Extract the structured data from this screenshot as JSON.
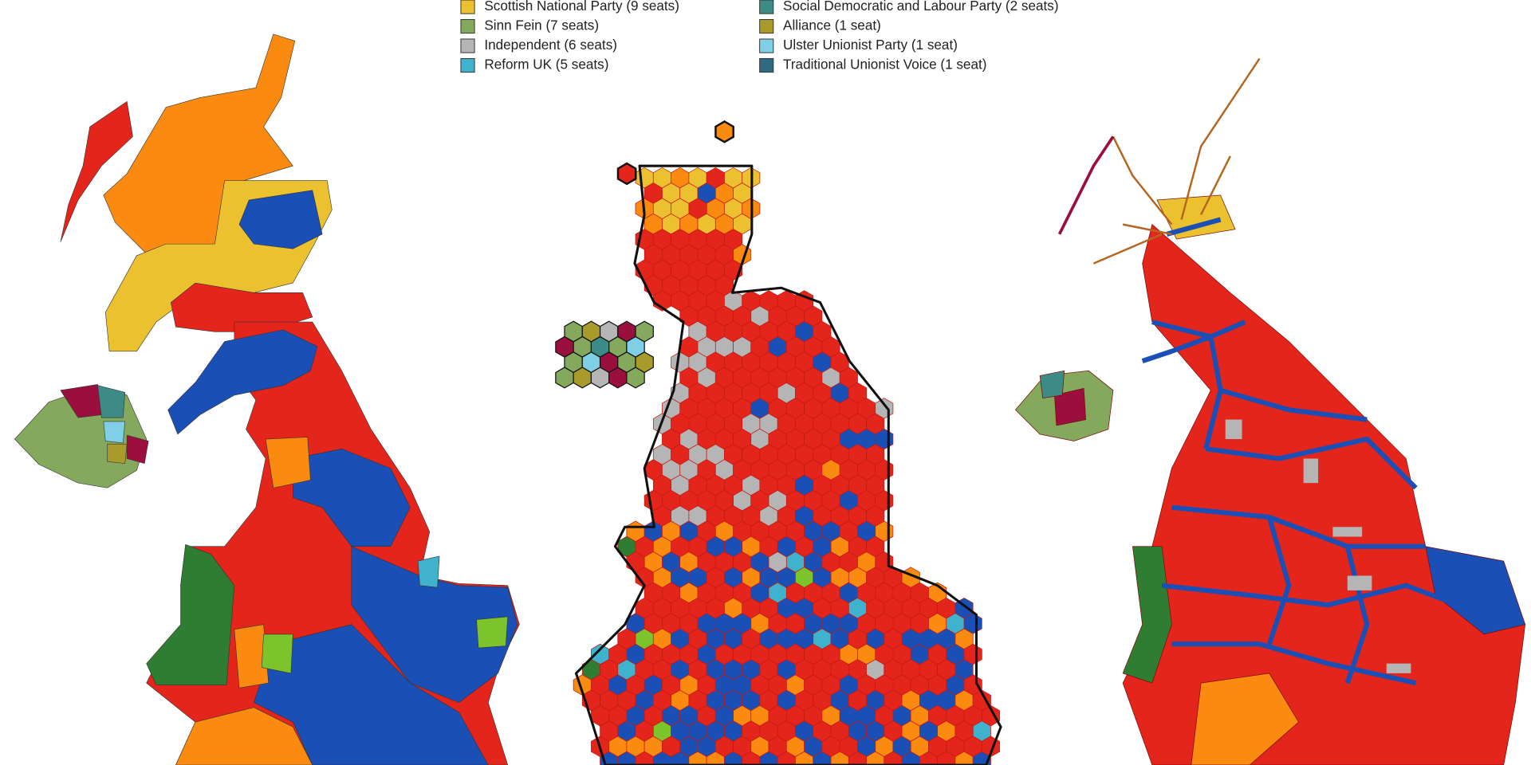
{
  "legend": {
    "items": [
      {
        "label": "Scottish National Party (9 seats)",
        "color": "#ecc12f"
      },
      {
        "label": "Sinn Fein (7 seats)",
        "color": "#84a95c"
      },
      {
        "label": "Independent (6 seats)",
        "color": "#b5b5b5"
      },
      {
        "label": "Reform UK (5 seats)",
        "color": "#3fb3cd"
      },
      {
        "label": "Social Democratic and Labour Party (2 seats)",
        "color": "#3c8b86"
      },
      {
        "label": "Alliance (1 seat)",
        "color": "#a99b2b"
      },
      {
        "label": "Ulster Unionist Party (1 seat)",
        "color": "#7fd0e6"
      },
      {
        "label": "Traditional Unionist Voice (1 seat)",
        "color": "#2e6b80"
      }
    ]
  }
}
